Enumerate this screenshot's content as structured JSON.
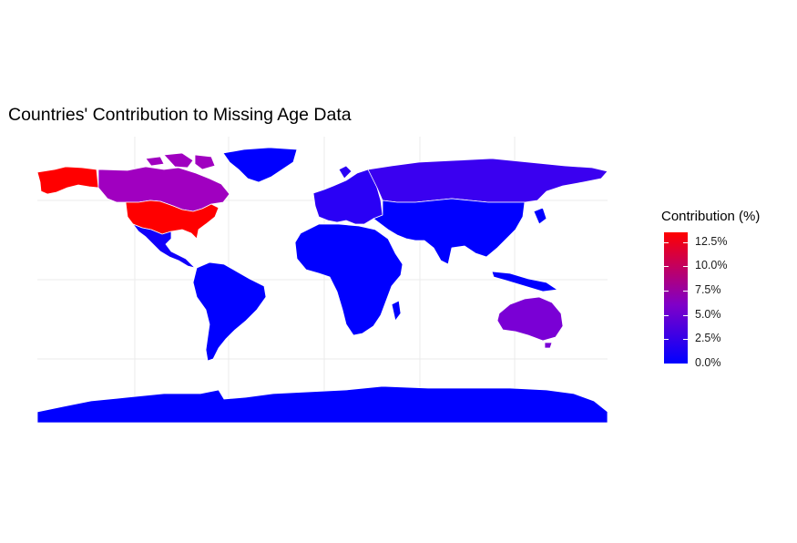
{
  "title": "Countries' Contribution to Missing Age Data",
  "legend": {
    "title": "Contribution (%)",
    "ticks": [
      "12.5%",
      "10.0%",
      "7.5%",
      "5.0%",
      "2.5%",
      "0.0%"
    ],
    "tick_values": [
      12.5,
      10.0,
      7.5,
      5.0,
      2.5,
      0.0
    ],
    "range": [
      0,
      13.5
    ],
    "low_color": "#0000ff",
    "high_color": "#ff0000"
  },
  "regions": [
    {
      "name": "United States",
      "value": 13.5,
      "color": "#ff0000"
    },
    {
      "name": "Alaska",
      "value": 13.5,
      "color": "#ff0000"
    },
    {
      "name": "Canada",
      "value": 5.5,
      "color": "#a000c0"
    },
    {
      "name": "Australia",
      "value": 4.5,
      "color": "#7a00d5"
    },
    {
      "name": "Russia",
      "value": 1.5,
      "color": "#3a00f0"
    },
    {
      "name": "Europe",
      "value": 1.2,
      "color": "#2a00f5"
    },
    {
      "name": "Greenland",
      "value": 0.2,
      "color": "#0000ff"
    },
    {
      "name": "Mexico",
      "value": 0.5,
      "color": "#1000fa"
    },
    {
      "name": "South America",
      "value": 0.3,
      "color": "#0000ff"
    },
    {
      "name": "Africa",
      "value": 0.1,
      "color": "#0000ff"
    },
    {
      "name": "Asia",
      "value": 0.2,
      "color": "#0000ff"
    },
    {
      "name": "Antarctica",
      "value": 0.0,
      "color": "#0000ff"
    }
  ]
}
